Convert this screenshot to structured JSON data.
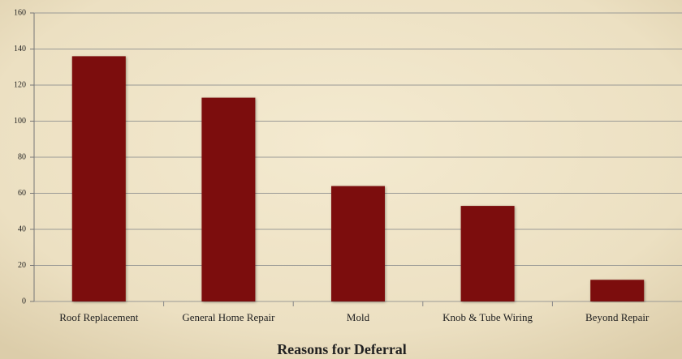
{
  "chart_data": {
    "type": "bar",
    "x_label": "Reasons for Deferral",
    "categories": [
      "Roof Replacement",
      "General Home Repair",
      "Mold",
      "Knob & Tube Wiring",
      "Beyond Repair"
    ],
    "values": [
      136,
      113,
      64,
      53,
      12
    ],
    "color": "#7b0f0a",
    "ylim": [
      0,
      160
    ],
    "yticks": [
      0,
      20,
      40,
      60,
      80,
      100,
      120,
      140,
      160
    ],
    "grid": true
  }
}
